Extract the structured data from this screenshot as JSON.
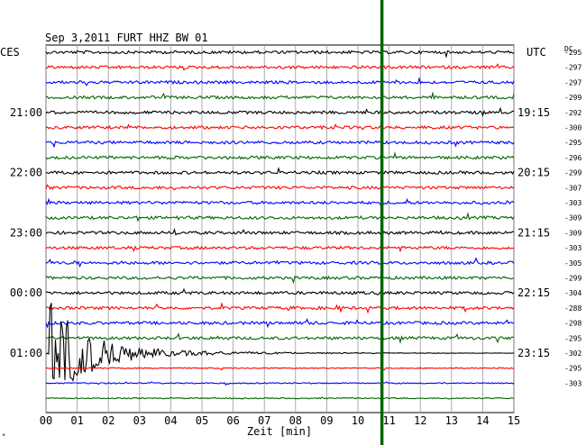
{
  "header": {
    "title": "Sep 3,2011   FURT HHZ BW 01",
    "left_tz": "CES",
    "right_tz": "UTC",
    "dc_label": "DC"
  },
  "colors": {
    "trace_cycle": [
      "#000000",
      "#ff0000",
      "#0000ff",
      "#006400"
    ],
    "grid": "#999999",
    "event": "#006400",
    "background": "#ffffff"
  },
  "chart_data": {
    "type": "line",
    "xlabel": "Zeit [min]",
    "xlim": [
      0,
      15
    ],
    "x_ticks": [
      "00",
      "01",
      "02",
      "03",
      "04",
      "05",
      "06",
      "07",
      "08",
      "09",
      "10",
      "11",
      "12",
      "13",
      "14",
      "15"
    ],
    "row_count": 24,
    "left_time_labels": [
      {
        "row": 4,
        "text": "21:00"
      },
      {
        "row": 8,
        "text": "22:00"
      },
      {
        "row": 12,
        "text": "23:00"
      },
      {
        "row": 16,
        "text": "00:00"
      },
      {
        "row": 20,
        "text": "01:00"
      }
    ],
    "right_time_labels": [
      {
        "row": 4,
        "text": "19:15"
      },
      {
        "row": 8,
        "text": "20:15"
      },
      {
        "row": 12,
        "text": "21:15"
      },
      {
        "row": 16,
        "text": "22:15"
      },
      {
        "row": 20,
        "text": "23:15"
      }
    ],
    "dc_offsets": [
      "-295",
      "-297",
      "-297",
      "-299",
      "-292",
      "-300",
      "-295",
      "-296",
      "-299",
      "-307",
      "-303",
      "-309",
      "-309",
      "-303",
      "-305",
      "-299",
      "-304",
      "-288",
      "-298",
      "-295",
      "-302",
      "-295",
      "-303"
    ],
    "event_band_min": [
      10.72,
      10.82
    ],
    "earthquake": {
      "row": 20,
      "start_min": 0.1
    }
  }
}
